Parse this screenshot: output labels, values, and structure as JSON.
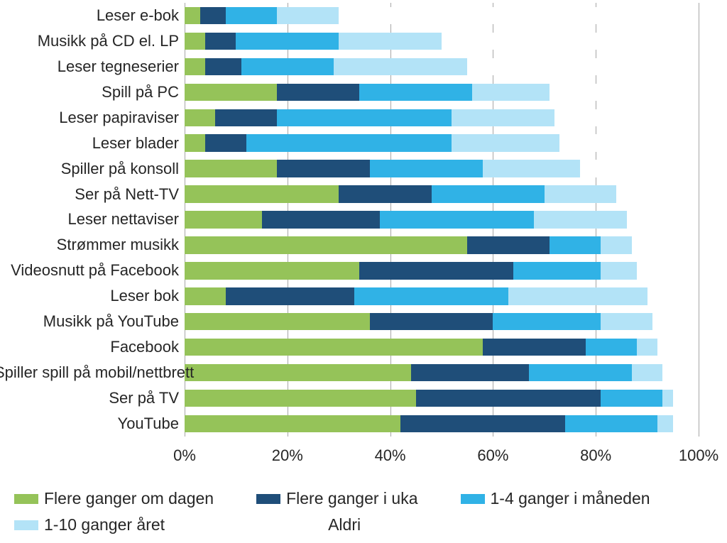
{
  "chart": {
    "type": "stacked-bar-horizontal",
    "background_color": "#ffffff",
    "grid_color": "#a6a6a6",
    "axis_color": "#808080",
    "label_color": "#262626",
    "font_family": "Arial",
    "label_fontsize": 22,
    "tick_fontsize": 22,
    "legend_fontsize": 23,
    "xlim": [
      0,
      100
    ],
    "x_ticks": [
      0,
      20,
      40,
      60,
      80,
      100
    ],
    "x_tick_labels": [
      "0%",
      "20%",
      "40%",
      "60%",
      "80%",
      "100%"
    ],
    "x_suffix": "%",
    "bar_height_ratio": 0.68,
    "series": [
      {
        "key": "daily",
        "label": "Flere ganger om dagen",
        "color": "#95c359"
      },
      {
        "key": "weekly",
        "label": "Flere ganger i uka",
        "color": "#1f4e79"
      },
      {
        "key": "monthly",
        "label": "1-4 ganger i måneden",
        "color": "#30b2e6"
      },
      {
        "key": "yearly",
        "label": "1-10 ganger året",
        "color": "#b3e3f7"
      },
      {
        "key": "never",
        "label": "Aldri",
        "color": "#ffffff"
      }
    ],
    "categories": [
      {
        "label": "Leser e-bok",
        "values": {
          "daily": 3,
          "weekly": 5,
          "monthly": 10,
          "yearly": 12,
          "never": 70
        }
      },
      {
        "label": "Musikk på CD el. LP",
        "values": {
          "daily": 4,
          "weekly": 6,
          "monthly": 20,
          "yearly": 20,
          "never": 50
        }
      },
      {
        "label": "Leser tegneserier",
        "values": {
          "daily": 4,
          "weekly": 7,
          "monthly": 18,
          "yearly": 26,
          "never": 45
        }
      },
      {
        "label": "Spill på PC",
        "values": {
          "daily": 18,
          "weekly": 16,
          "monthly": 22,
          "yearly": 15,
          "never": 29
        }
      },
      {
        "label": "Leser papiraviser",
        "values": {
          "daily": 6,
          "weekly": 12,
          "monthly": 34,
          "yearly": 20,
          "never": 28
        }
      },
      {
        "label": "Leser blader",
        "values": {
          "daily": 4,
          "weekly": 8,
          "monthly": 40,
          "yearly": 21,
          "never": 27
        }
      },
      {
        "label": "Spiller på konsoll",
        "values": {
          "daily": 18,
          "weekly": 18,
          "monthly": 22,
          "yearly": 19,
          "never": 23
        }
      },
      {
        "label": "Ser på Nett-TV",
        "values": {
          "daily": 30,
          "weekly": 18,
          "monthly": 22,
          "yearly": 14,
          "never": 16
        }
      },
      {
        "label": "Leser nettaviser",
        "values": {
          "daily": 15,
          "weekly": 23,
          "monthly": 30,
          "yearly": 18,
          "never": 14
        }
      },
      {
        "label": "Strømmer musikk",
        "values": {
          "daily": 55,
          "weekly": 16,
          "monthly": 10,
          "yearly": 6,
          "never": 13
        }
      },
      {
        "label": "Videosnutt på Facebook",
        "values": {
          "daily": 34,
          "weekly": 30,
          "monthly": 17,
          "yearly": 7,
          "never": 12
        }
      },
      {
        "label": "Leser bok",
        "values": {
          "daily": 8,
          "weekly": 25,
          "monthly": 30,
          "yearly": 27,
          "never": 10
        }
      },
      {
        "label": "Musikk på YouTube",
        "values": {
          "daily": 36,
          "weekly": 24,
          "monthly": 21,
          "yearly": 10,
          "never": 9
        }
      },
      {
        "label": "Facebook",
        "values": {
          "daily": 58,
          "weekly": 20,
          "monthly": 10,
          "yearly": 4,
          "never": 8
        }
      },
      {
        "label": "Spiller spill på mobil/nettbrett",
        "values": {
          "daily": 44,
          "weekly": 23,
          "monthly": 20,
          "yearly": 6,
          "never": 7
        }
      },
      {
        "label": "Ser på TV",
        "values": {
          "daily": 45,
          "weekly": 36,
          "monthly": 12,
          "yearly": 2,
          "never": 5
        }
      },
      {
        "label": "YouTube",
        "values": {
          "daily": 42,
          "weekly": 32,
          "monthly": 18,
          "yearly": 3,
          "never": 5
        }
      }
    ]
  }
}
